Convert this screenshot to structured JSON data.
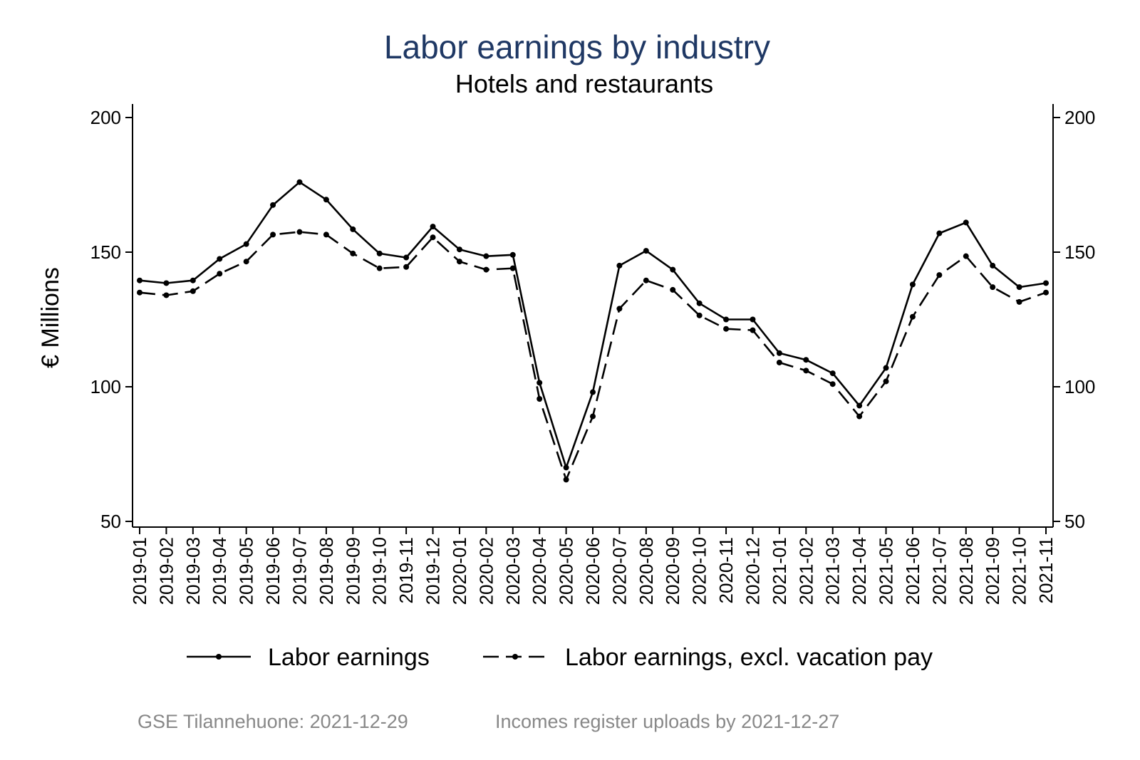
{
  "chart_data": {
    "type": "line",
    "title": "Labor earnings by industry",
    "subtitle": "Hotels and restaurants",
    "ylabel": "€ Millions",
    "xlabel": "",
    "ylim": [
      50,
      200
    ],
    "yticks": [
      50,
      100,
      150,
      200
    ],
    "grid": false,
    "legend_position": "bottom",
    "x": [
      "2019-01",
      "2019-02",
      "2019-03",
      "2019-04",
      "2019-05",
      "2019-06",
      "2019-07",
      "2019-08",
      "2019-09",
      "2019-10",
      "2019-11",
      "2019-12",
      "2020-01",
      "2020-02",
      "2020-03",
      "2020-04",
      "2020-05",
      "2020-06",
      "2020-07",
      "2020-08",
      "2020-09",
      "2020-10",
      "2020-11",
      "2020-12",
      "2021-01",
      "2021-02",
      "2021-03",
      "2021-04",
      "2021-05",
      "2021-06",
      "2021-07",
      "2021-08",
      "2021-09",
      "2021-10",
      "2021-11"
    ],
    "series": [
      {
        "name": "Labor earnings",
        "style": "solid",
        "color": "#000000",
        "values": [
          139.5,
          138.5,
          139.5,
          147.5,
          153,
          167.5,
          176,
          169.5,
          158.5,
          149.5,
          148,
          159.5,
          151,
          148.5,
          149,
          101.5,
          70,
          98,
          145,
          150.5,
          143.5,
          131,
          125,
          125,
          112.5,
          110,
          105,
          93,
          107,
          138,
          157,
          161,
          145,
          137,
          138.5
        ]
      },
      {
        "name": "Labor earnings, excl. vacation pay",
        "style": "dashed",
        "color": "#000000",
        "values": [
          135,
          134,
          135.5,
          142,
          146.5,
          156.5,
          157.5,
          156.5,
          149.5,
          144,
          144.5,
          155.5,
          146.5,
          143.5,
          144,
          95.5,
          65.5,
          89,
          129,
          139.5,
          136,
          126.5,
          121.5,
          121,
          109,
          106,
          101,
          89,
          102,
          126,
          141.5,
          148.5,
          137,
          131.5,
          135
        ]
      }
    ]
  },
  "footer": {
    "source_note": "GSE Tilannehuone: 2021-12-29",
    "upload_note": "Incomes register uploads by 2021-12-27"
  }
}
